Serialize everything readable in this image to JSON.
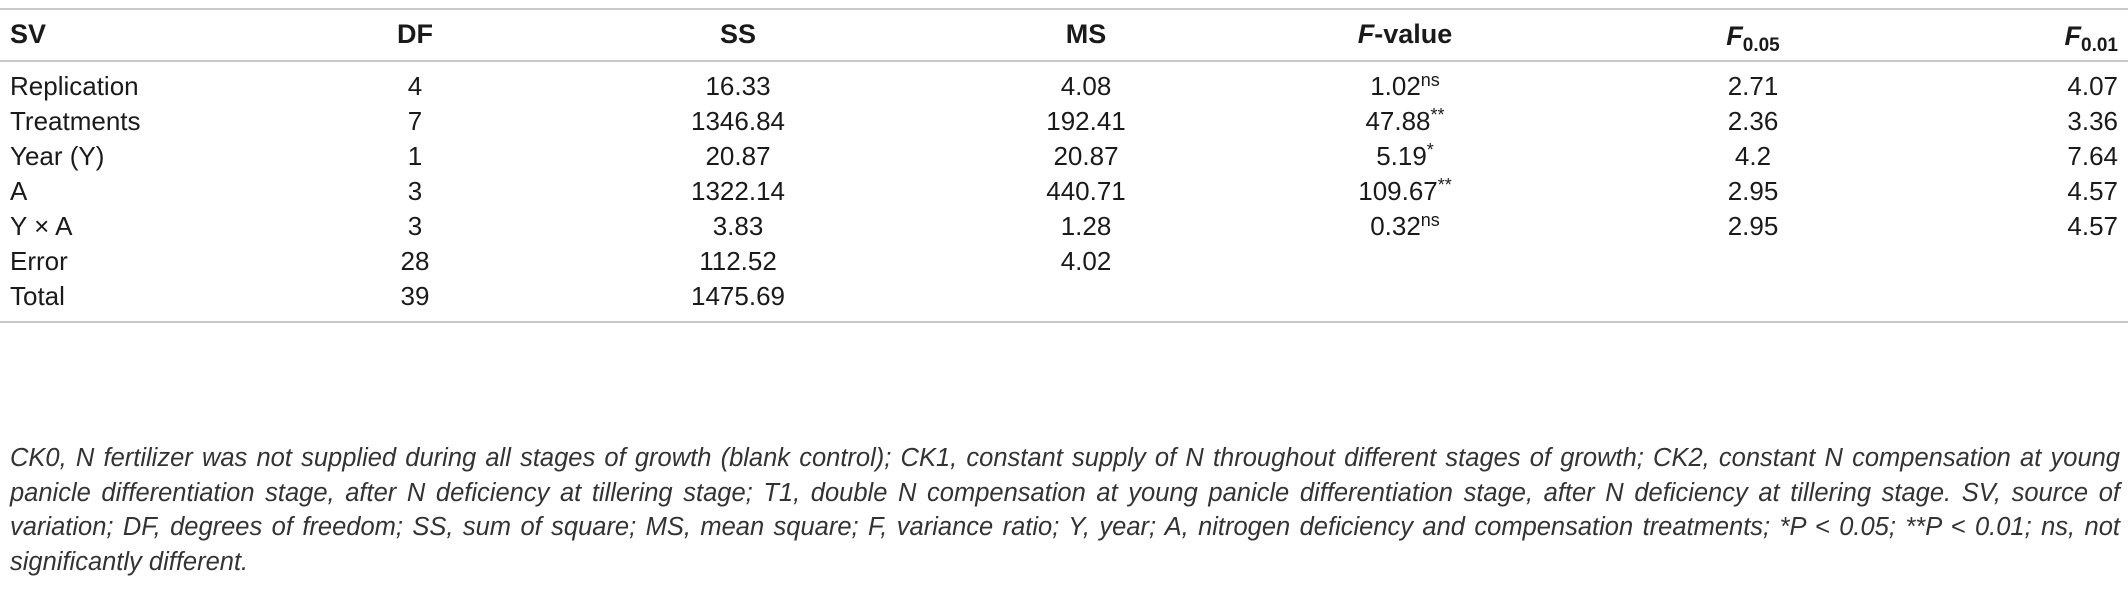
{
  "table": {
    "header": {
      "sv": "SV",
      "df": "DF",
      "ss": "SS",
      "ms": "MS",
      "f_value": {
        "italic": "F",
        "rest": "-value"
      },
      "f005": {
        "italic": "F",
        "sub": "0.05"
      },
      "f001": {
        "italic": "F",
        "sub": "0.01"
      }
    },
    "rows": [
      {
        "sv": "Replication",
        "df": "4",
        "ss": "16.33",
        "ms": "4.08",
        "f_value": "1.02",
        "f_sup": "ns",
        "f005": "2.71",
        "f001": "4.07"
      },
      {
        "sv": "Treatments",
        "df": "7",
        "ss": "1346.84",
        "ms": "192.41",
        "f_value": "47.88",
        "f_sup": "**",
        "f005": "2.36",
        "f001": "3.36"
      },
      {
        "sv": "Year (Y)",
        "df": "1",
        "ss": "20.87",
        "ms": "20.87",
        "f_value": "5.19",
        "f_sup": "*",
        "f005": "4.2",
        "f001": "7.64"
      },
      {
        "sv": "A",
        "df": "3",
        "ss": "1322.14",
        "ms": "440.71",
        "f_value": "109.67",
        "f_sup": "**",
        "f005": "2.95",
        "f001": "4.57"
      },
      {
        "sv": "Y × A",
        "df": "3",
        "ss": "3.83",
        "ms": "1.28",
        "f_value": "0.32",
        "f_sup": "ns",
        "f005": "2.95",
        "f001": "4.57"
      },
      {
        "sv": "Error",
        "df": "28",
        "ss": "112.52",
        "ms": "4.02",
        "f_value": "",
        "f_sup": "",
        "f005": "",
        "f001": ""
      },
      {
        "sv": "Total",
        "df": "39",
        "ss": "1475.69",
        "ms": "",
        "f_value": "",
        "f_sup": "",
        "f005": "",
        "f001": ""
      }
    ]
  },
  "footnote": "CK0, N fertilizer was not supplied during all stages of growth (blank control); CK1, constant supply of N throughout different stages of growth; CK2, constant N compensation at young panicle differentiation stage, after N deficiency at tillering stage; T1, double N compensation at young panicle differentiation stage, after N deficiency at tillering stage. SV, source of variation; DF, degrees of freedom; SS, sum of square; MS, mean square; F, variance ratio; Y, year; A, nitrogen deficiency and compensation treatments; *P < 0.05; **P < 0.01; ns, not significantly different."
}
